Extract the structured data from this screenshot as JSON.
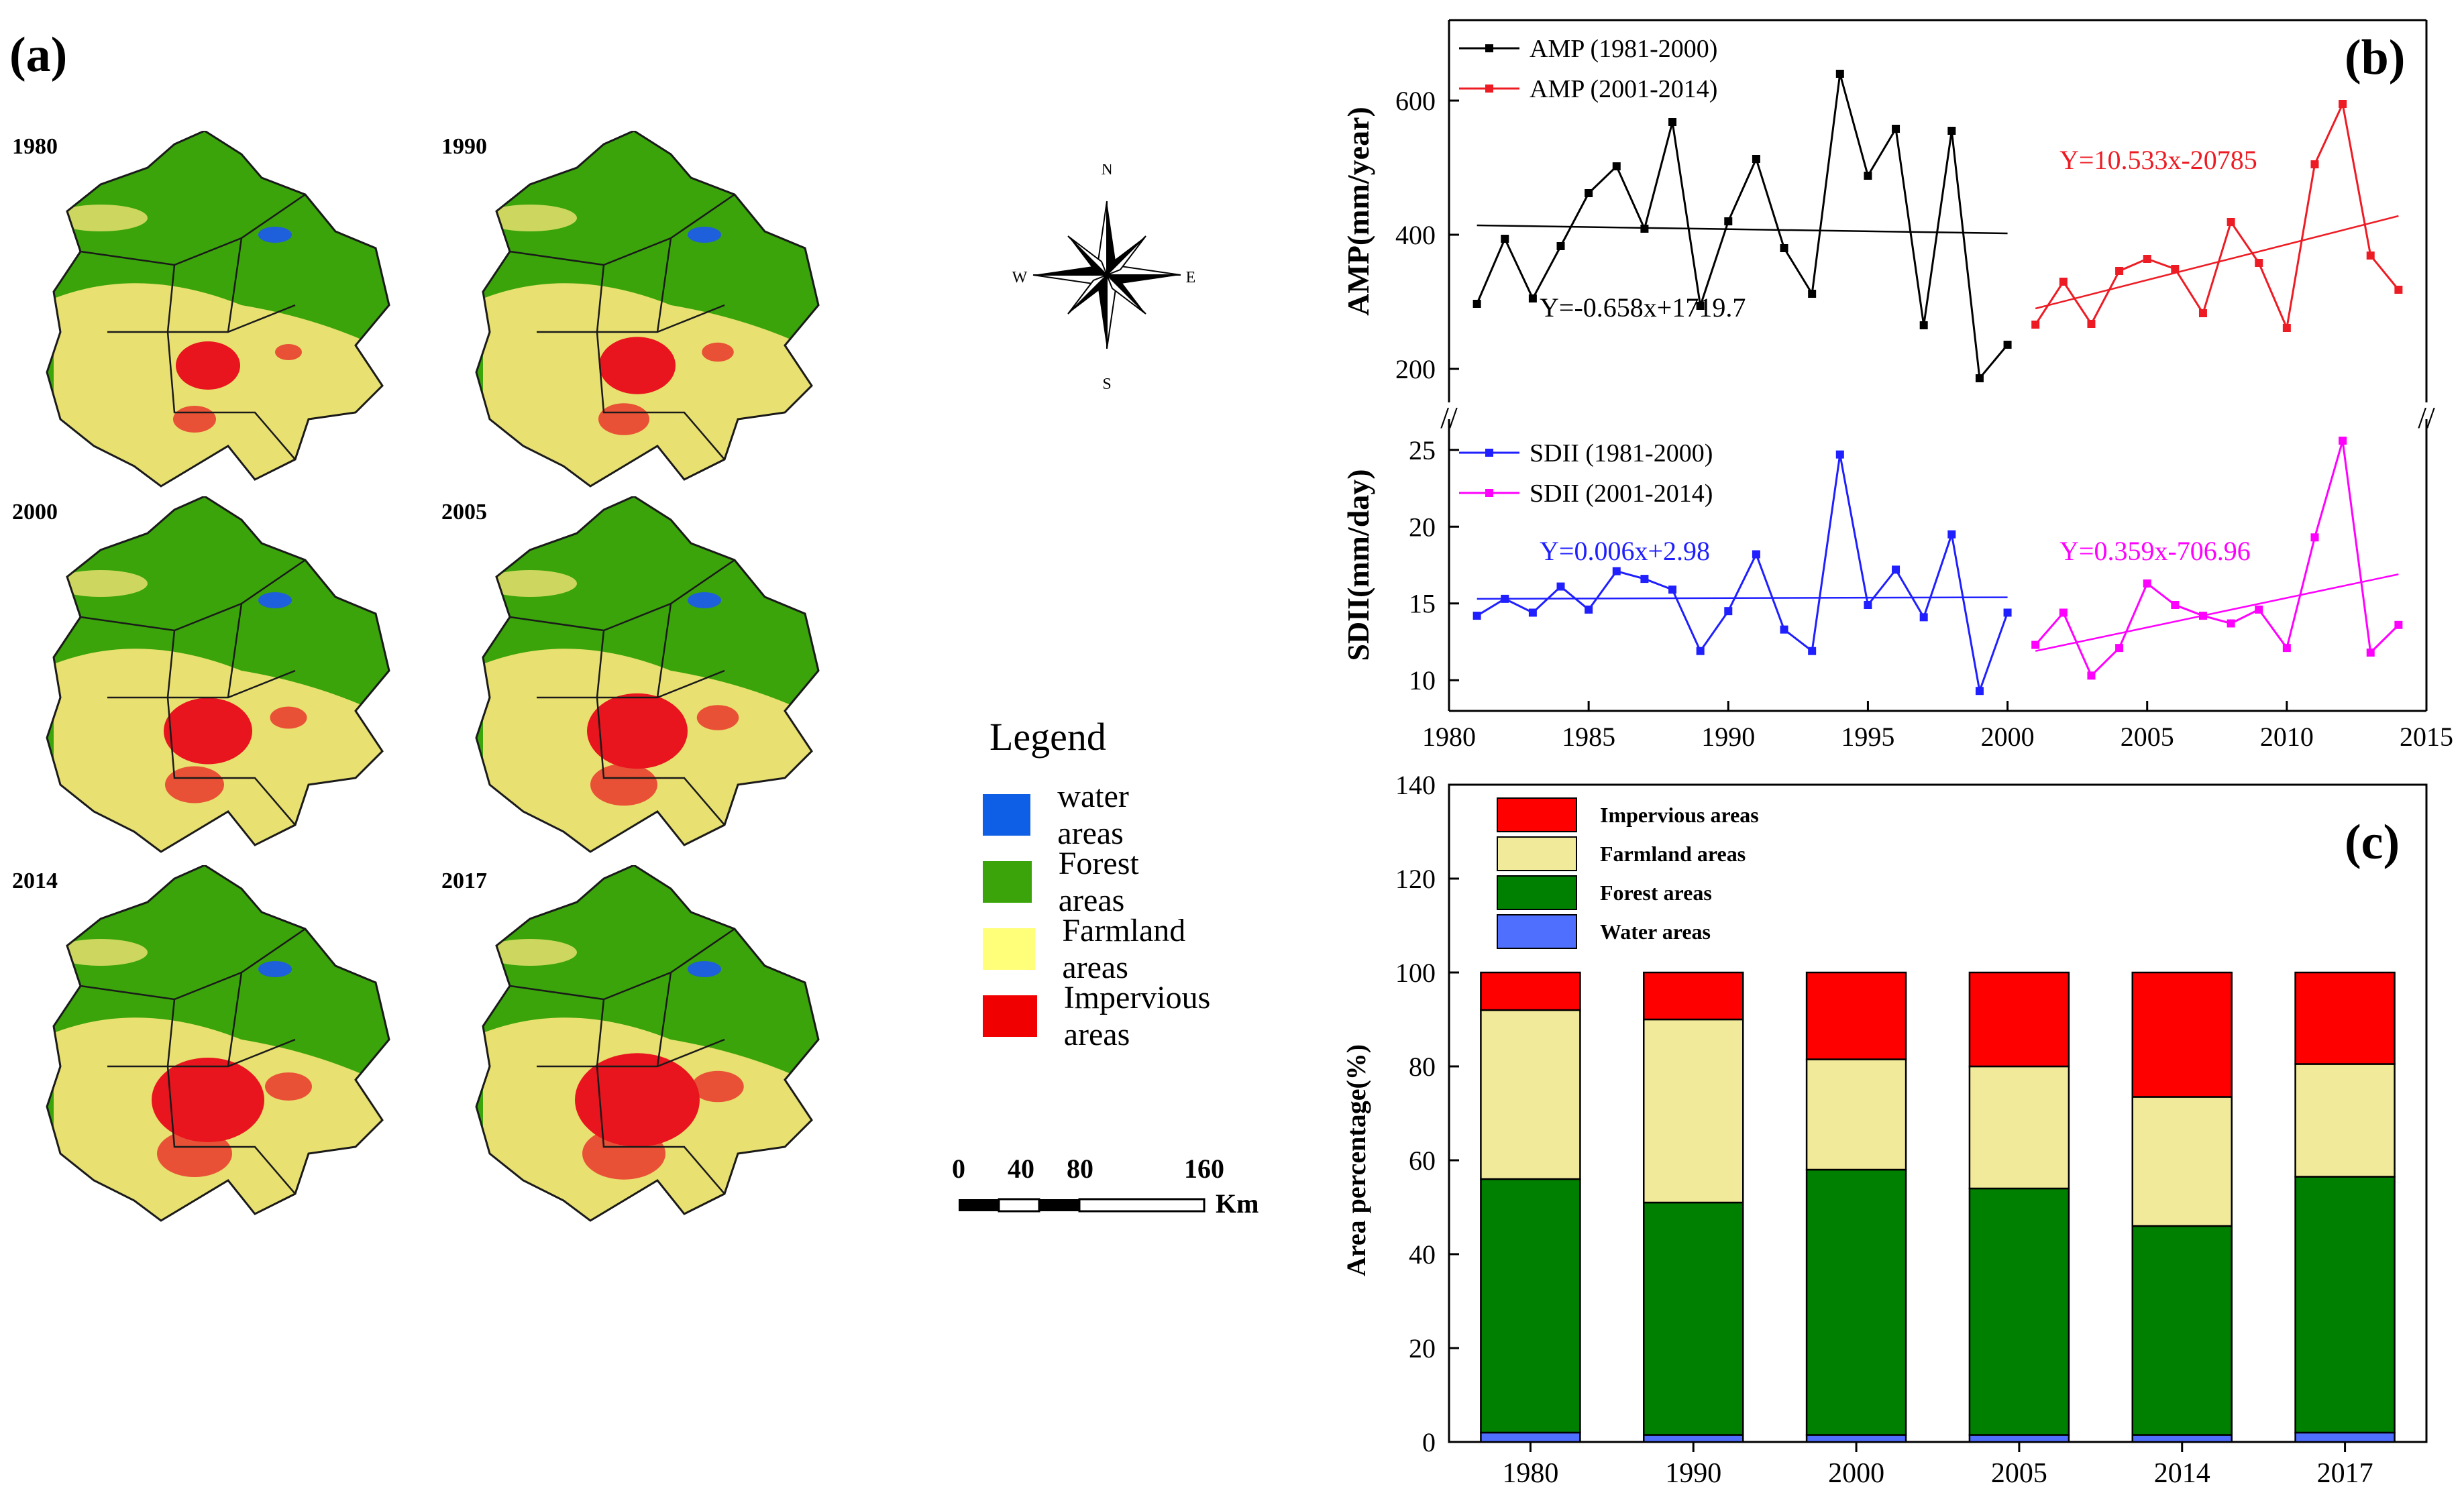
{
  "panel_a": {
    "label": "(a)",
    "maps": [
      {
        "year": "1980"
      },
      {
        "year": "1990"
      },
      {
        "year": "2000"
      },
      {
        "year": "2005"
      },
      {
        "year": "2014"
      },
      {
        "year": "2017"
      }
    ],
    "compass": {
      "n": "N",
      "s": "S",
      "e": "E",
      "w": "W"
    },
    "legend": {
      "title": "Legend",
      "items": [
        {
          "label": "water areas",
          "color": "#0f5fe6"
        },
        {
          "label": "Forest areas",
          "color": "#3aa40a"
        },
        {
          "label": "Farmland areas",
          "color": "#ffff7a"
        },
        {
          "label": "Impervious areas",
          "color": "#f00000"
        }
      ]
    },
    "scale_bar": {
      "ticks": [
        "0",
        "40",
        "80",
        "160"
      ],
      "unit": "Km"
    },
    "colors": {
      "forest": "#3aa40a",
      "farmland": "#e8e070",
      "impervious": "#e8141e",
      "water": "#1e5fdc",
      "border": "#1a1a1a"
    }
  },
  "panel_b_label": "(b)",
  "panel_c_label": "(c)",
  "chart_data": [
    {
      "type": "line",
      "title": "AMP",
      "ylabel": "AMP(mm/year)",
      "ylim": [
        150,
        720
      ],
      "yticks": [
        200,
        400,
        600
      ],
      "series": [
        {
          "name": "AMP (1981-2000)",
          "color": "#000000",
          "x": [
            1981,
            1982,
            1983,
            1984,
            1985,
            1986,
            1987,
            1988,
            1989,
            1990,
            1991,
            1992,
            1993,
            1994,
            1995,
            1996,
            1997,
            1998,
            1999,
            2000
          ],
          "values": [
            297,
            394,
            305,
            383,
            462,
            502,
            409,
            568,
            294,
            420,
            513,
            380,
            312,
            640,
            488,
            558,
            265,
            555,
            186,
            236
          ]
        },
        {
          "name": "AMP (2001-2014)",
          "color": "#ed1c24",
          "x": [
            2001,
            2002,
            2003,
            2004,
            2005,
            2006,
            2007,
            2008,
            2009,
            2010,
            2011,
            2012,
            2013,
            2014
          ],
          "values": [
            266,
            330,
            267,
            346,
            364,
            349,
            283,
            419,
            358,
            261,
            505,
            595,
            369,
            318
          ]
        }
      ],
      "trendlines": [
        {
          "label": "Y=-0.658x+1719.7",
          "color": "#000000",
          "x": [
            1981,
            2000
          ],
          "y": [
            414,
            402
          ]
        },
        {
          "label": "Y=10.533x-20785",
          "color": "#ed1c24",
          "x": [
            2001,
            2014
          ],
          "y": [
            290,
            428
          ]
        }
      ]
    },
    {
      "type": "line",
      "title": "SDII",
      "ylabel": "SDII(mm/day)",
      "xlabel": "",
      "xlim": [
        1980,
        2015
      ],
      "xticks": [
        1980,
        1985,
        1990,
        1995,
        2000,
        2005,
        2010,
        2015
      ],
      "ylim": [
        8,
        27
      ],
      "yticks": [
        10,
        15,
        20,
        25
      ],
      "series": [
        {
          "name": "SDII (1981-2000)",
          "color": "#1f1fff",
          "x": [
            1981,
            1982,
            1983,
            1984,
            1985,
            1986,
            1987,
            1988,
            1989,
            1990,
            1991,
            1992,
            1993,
            1994,
            1995,
            1996,
            1997,
            1998,
            1999,
            2000
          ],
          "values": [
            14.2,
            15.3,
            14.4,
            16.1,
            14.6,
            17.1,
            16.6,
            15.9,
            11.9,
            14.5,
            18.2,
            13.3,
            11.9,
            24.7,
            14.9,
            17.2,
            14.1,
            19.5,
            9.3,
            14.4
          ]
        },
        {
          "name": "SDII (2001-2014)",
          "color": "#ff00ff",
          "x": [
            2001,
            2002,
            2003,
            2004,
            2005,
            2006,
            2007,
            2008,
            2009,
            2010,
            2011,
            2012,
            2013,
            2014
          ],
          "values": [
            12.3,
            14.4,
            10.3,
            12.1,
            16.3,
            14.9,
            14.2,
            13.7,
            14.6,
            12.1,
            19.3,
            25.6,
            11.8,
            13.6
          ]
        }
      ],
      "trendlines": [
        {
          "label": "Y=0.006x+2.98",
          "color": "#1f1fff",
          "x": [
            1981,
            2000
          ],
          "y": [
            15.3,
            15.4
          ]
        },
        {
          "label": "Y=0.359x-706.96",
          "color": "#ff00ff",
          "x": [
            2001,
            2014
          ],
          "y": [
            11.9,
            16.9
          ]
        }
      ],
      "axis_break": "//"
    },
    {
      "type": "bar",
      "stacked": true,
      "ylabel": "Area percentage(%)",
      "ylim": [
        0,
        140
      ],
      "yticks": [
        0,
        20,
        40,
        60,
        80,
        100,
        120,
        140
      ],
      "categories": [
        "1980",
        "1990",
        "2000",
        "2005",
        "2014",
        "2017"
      ],
      "series": [
        {
          "name": "Water areas",
          "color": "#4f6fff",
          "values": [
            2,
            1.5,
            1.5,
            1.5,
            1.5,
            2
          ]
        },
        {
          "name": "Forest areas",
          "color": "#008000",
          "values": [
            54,
            49.5,
            56.5,
            52.5,
            44.5,
            54.5
          ]
        },
        {
          "name": "Farmland areas",
          "color": "#f2ea9b",
          "values": [
            36,
            39,
            23.5,
            26,
            27.5,
            24
          ]
        },
        {
          "name": "Impervious areas",
          "color": "#ff0000",
          "values": [
            8,
            10,
            18.5,
            20,
            26.5,
            19.5
          ]
        }
      ],
      "legend_order": [
        "Impervious areas",
        "Farmland areas",
        "Forest areas",
        "Water areas"
      ]
    }
  ]
}
